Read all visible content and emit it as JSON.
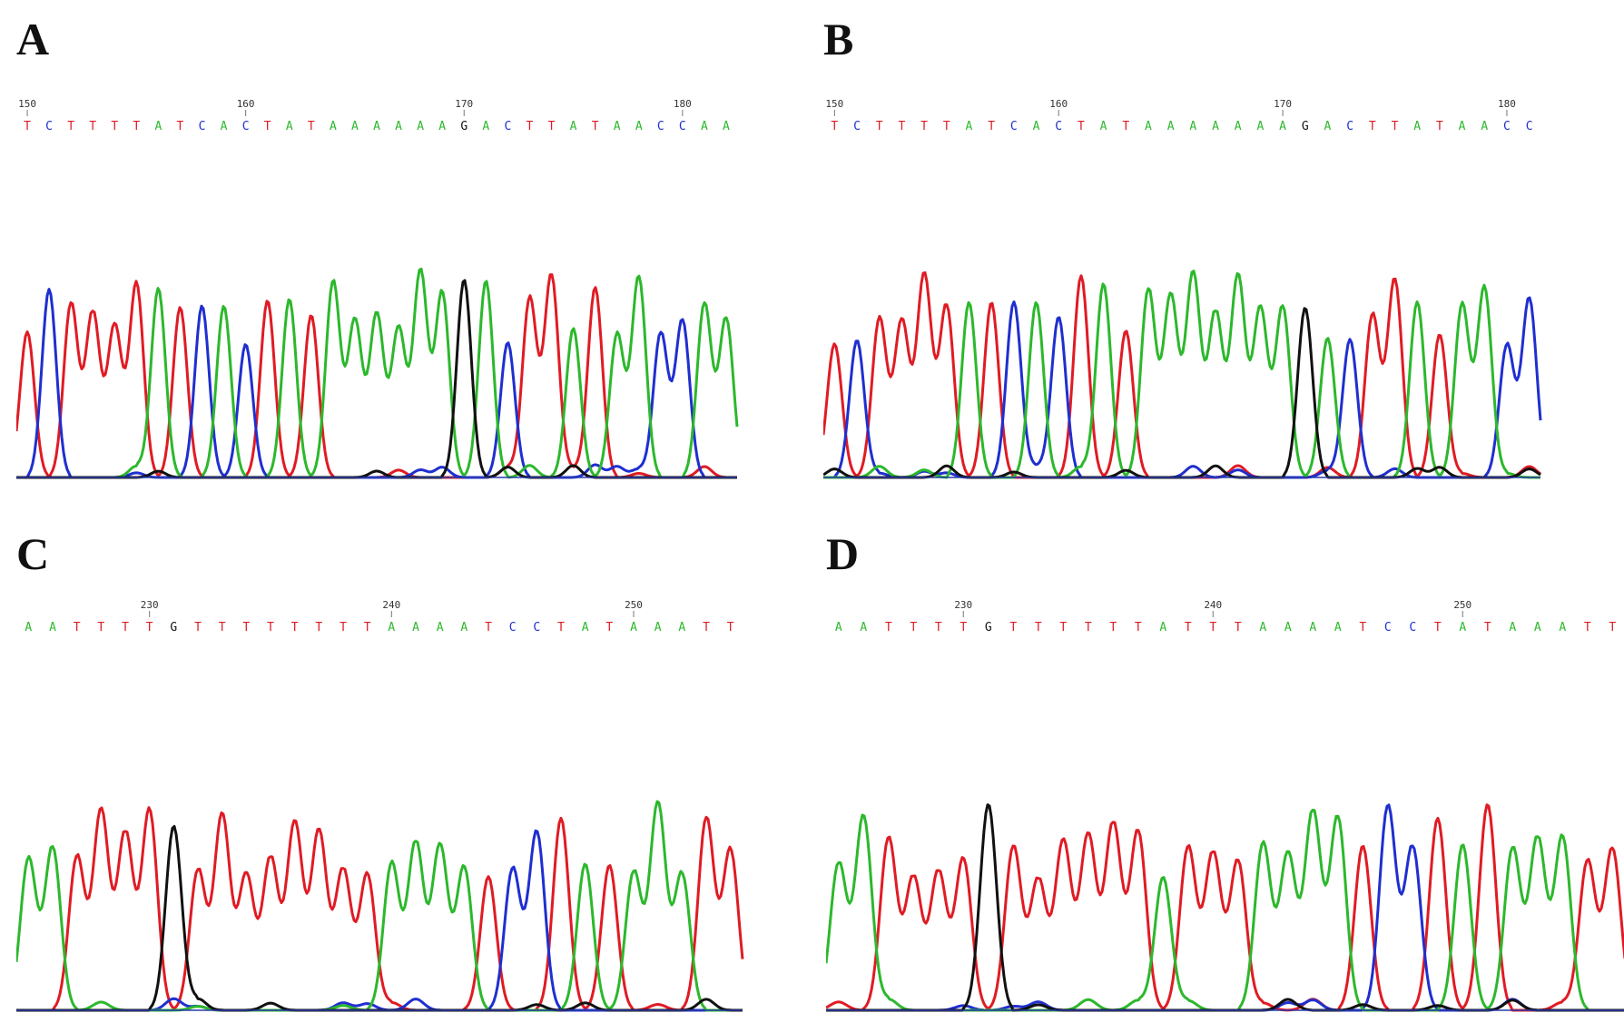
{
  "colors": {
    "A": "#2cb82c",
    "C": "#1f2fd0",
    "G": "#111111",
    "T": "#e01b24"
  },
  "panels": [
    {
      "id": "A",
      "label": "A",
      "start": 150,
      "sequence": "TCTTTTATCACTATAAAAAAGACTTATAACCAA",
      "positions": [
        "150",
        "160",
        "170",
        "180"
      ]
    },
    {
      "id": "B",
      "label": "B",
      "start": 150,
      "sequence": "TCTTTTATCACTATAAAAAAAGACTTATAACC",
      "positions": [
        "150",
        "160",
        "170",
        "180"
      ]
    },
    {
      "id": "C",
      "label": "C",
      "start": 225,
      "sequence": "AATTTTGTTTTTTTTAAAATCCTATAAATT",
      "positions": [
        "230",
        "240",
        "250"
      ]
    },
    {
      "id": "D",
      "label": "D",
      "start": 225,
      "sequence": "AATTTTGTTTTTTATTTAAAATCCTATAAATT",
      "positions": [
        "230",
        "240",
        "250"
      ]
    }
  ]
}
